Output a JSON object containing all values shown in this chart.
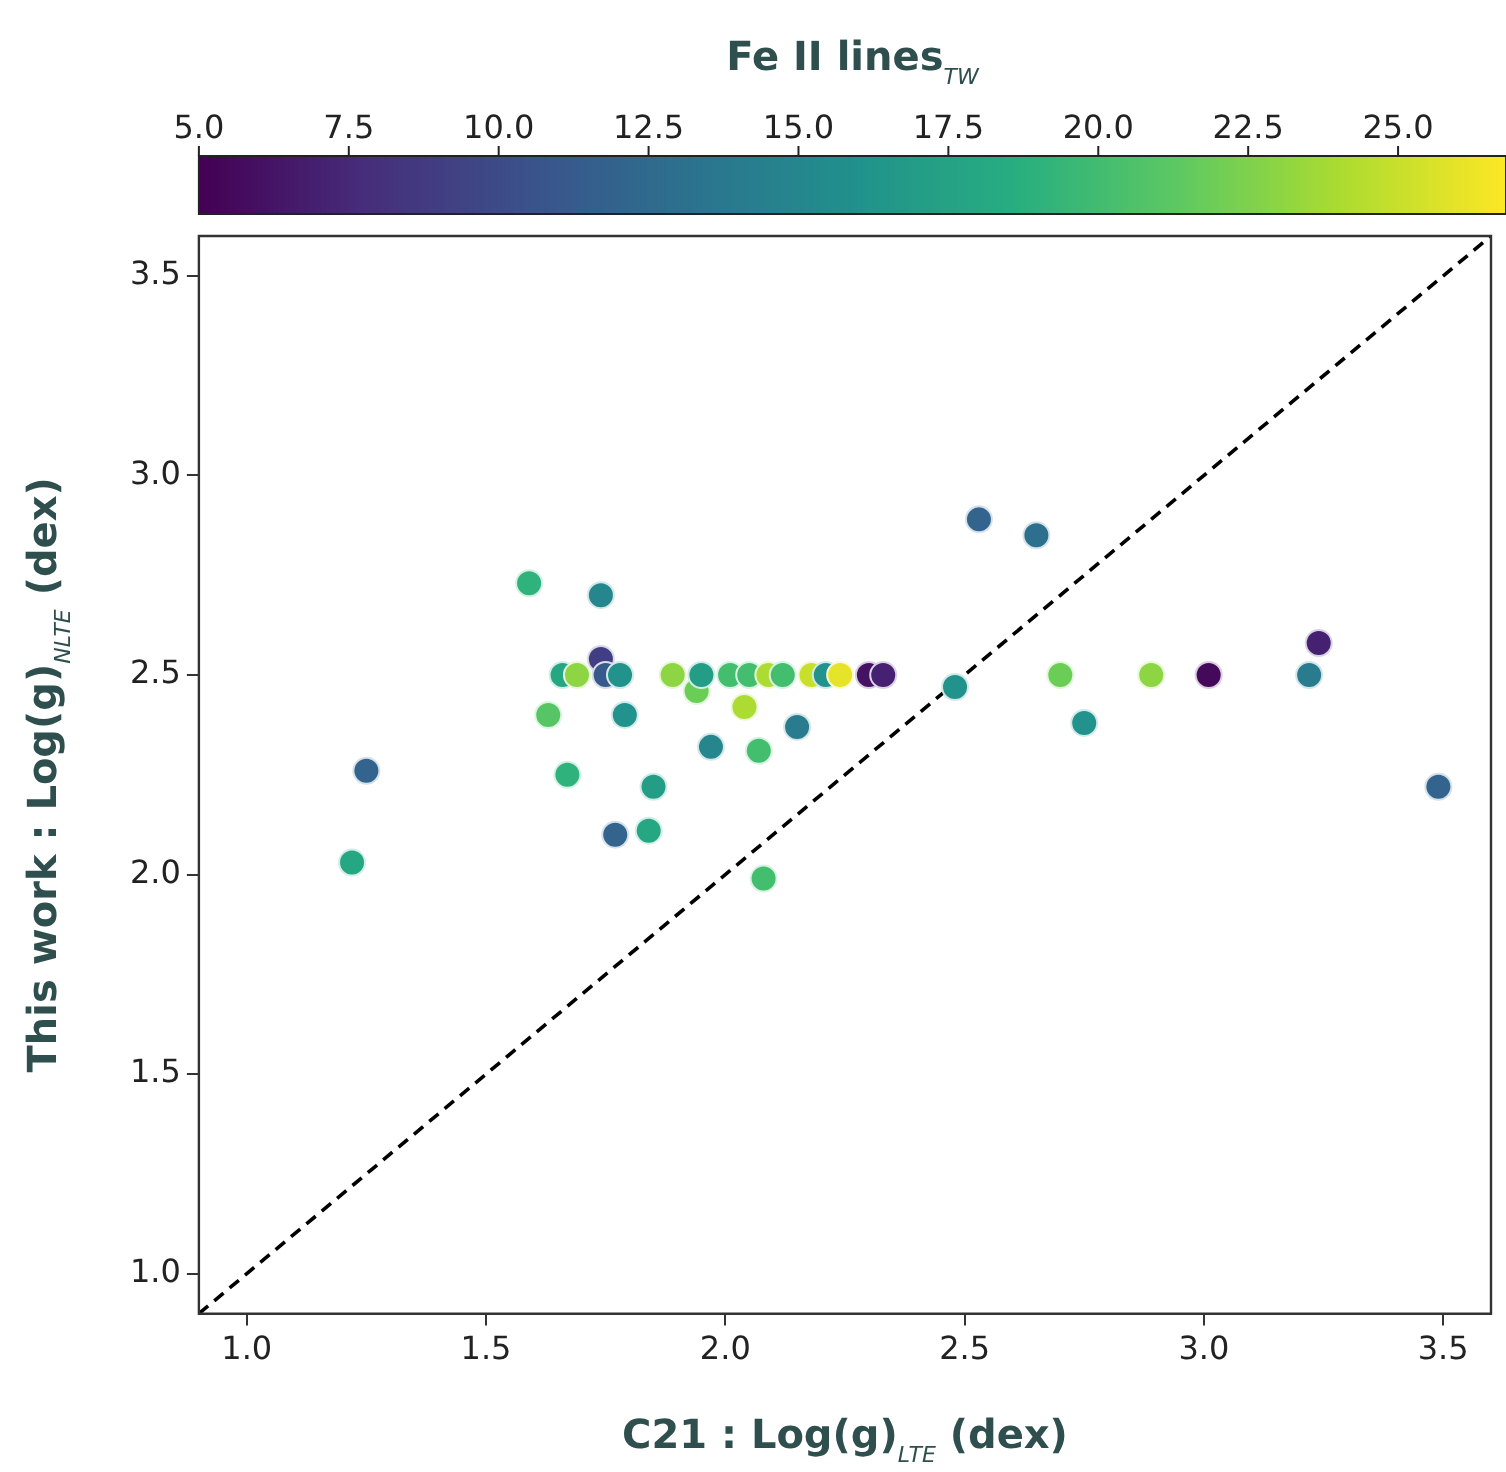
{
  "chart_data": {
    "type": "scatter",
    "xlabel": "C21 : Log(g)$_{LTE}$ (dex)",
    "ylabel": "This work : Log(g)$_{NLTE}$ (dex)",
    "clabel": "Fe II lines$_{TW}$",
    "xlim": [
      0.9,
      3.6
    ],
    "ylim": [
      0.9,
      3.6
    ],
    "xticks": [
      {
        "value": 1,
        "label": "1.0"
      },
      {
        "value": 1.5,
        "label": "1.5"
      },
      {
        "value": 2,
        "label": "2.0"
      },
      {
        "value": 2.5,
        "label": "2.5"
      },
      {
        "value": 3,
        "label": "3.0"
      },
      {
        "value": 3.5,
        "label": "3.5"
      }
    ],
    "yticks": [
      {
        "value": 1,
        "label": "1.0"
      },
      {
        "value": 1.5,
        "label": "1.5"
      },
      {
        "value": 2,
        "label": "2.0"
      },
      {
        "value": 2.5,
        "label": "2.5"
      },
      {
        "value": 3,
        "label": "3.0"
      },
      {
        "value": 3.5,
        "label": "3.5"
      }
    ],
    "clim": [
      5,
      26.8
    ],
    "cticks": [
      {
        "value": 5,
        "label": "5.0"
      },
      {
        "value": 7.5,
        "label": "7.5"
      },
      {
        "value": 10,
        "label": "10.0"
      },
      {
        "value": 12.5,
        "label": "12.5"
      },
      {
        "value": 15,
        "label": "15.0"
      },
      {
        "value": 17.5,
        "label": "17.5"
      },
      {
        "value": 20,
        "label": "20.0"
      },
      {
        "value": 22.5,
        "label": "22.5"
      },
      {
        "value": 25,
        "label": "25.0"
      }
    ],
    "grid": false,
    "legend": false,
    "series": [
      {
        "type": "scatter",
        "marker": "circle",
        "x": [
          1.22,
          1.25,
          1.59,
          1.63,
          1.67,
          1.66,
          1.69,
          1.74,
          1.74,
          1.75,
          1.77,
          1.78,
          1.79,
          1.84,
          1.85,
          1.89,
          1.94,
          1.95,
          1.97,
          2.01,
          2.04,
          2.05,
          2.07,
          2.08,
          2.09,
          2.12,
          2.15,
          2.18,
          2.21,
          2.24,
          2.3,
          2.33,
          2.48,
          2.53,
          2.65,
          2.7,
          2.75,
          2.89,
          3.01,
          3.22,
          3.24,
          3.49
        ],
        "values": [
          2.03,
          2.26,
          2.73,
          2.4,
          2.25,
          2.5,
          2.5,
          2.7,
          2.54,
          2.5,
          2.1,
          2.5,
          2.4,
          2.11,
          2.22,
          2.5,
          2.46,
          2.5,
          2.32,
          2.5,
          2.42,
          2.5,
          2.31,
          1.99,
          2.5,
          2.5,
          2.37,
          2.5,
          2.5,
          2.5,
          2.5,
          2.5,
          2.47,
          2.89,
          2.85,
          2.5,
          2.38,
          2.5,
          2.5,
          2.5,
          2.58,
          2.22
        ],
        "cvalues": [
          18,
          12,
          19,
          21,
          19,
          18,
          23,
          15,
          9,
          11,
          12,
          16,
          16,
          18,
          17,
          23,
          22,
          17,
          15,
          20,
          24,
          20,
          20,
          20,
          24,
          20,
          14,
          25,
          16,
          26,
          6,
          7,
          16,
          12,
          13,
          22,
          16,
          23,
          5.5,
          14,
          7,
          12
        ],
        "colors": [
          "#26a783",
          "#33648d",
          "#30b27c",
          "#57c566",
          "#30b27c",
          "#26a783",
          "#8ed544",
          "#25878d",
          "#413e83",
          "#38598c",
          "#33648d",
          "#21928c",
          "#21928c",
          "#26a783",
          "#249d87",
          "#8ed544",
          "#6ace56",
          "#249d87",
          "#25878d",
          "#43be6f",
          "#acdc31",
          "#43be6f",
          "#43be6f",
          "#43be6f",
          "#acdc31",
          "#43be6f",
          "#297c8d",
          "#c8e02c",
          "#21928c",
          "#e6e428",
          "#451162",
          "#462171",
          "#21928c",
          "#33648d",
          "#2d708e",
          "#6ace56",
          "#21928c",
          "#8ed544",
          "#44095b",
          "#297c8d",
          "#462171",
          "#33648d"
        ]
      },
      {
        "type": "line",
        "marker": "none",
        "x": [
          0.9,
          3.6
        ],
        "values": [
          0.9,
          3.6
        ],
        "color": "#000000",
        "line_style": "dashed"
      }
    ]
  }
}
